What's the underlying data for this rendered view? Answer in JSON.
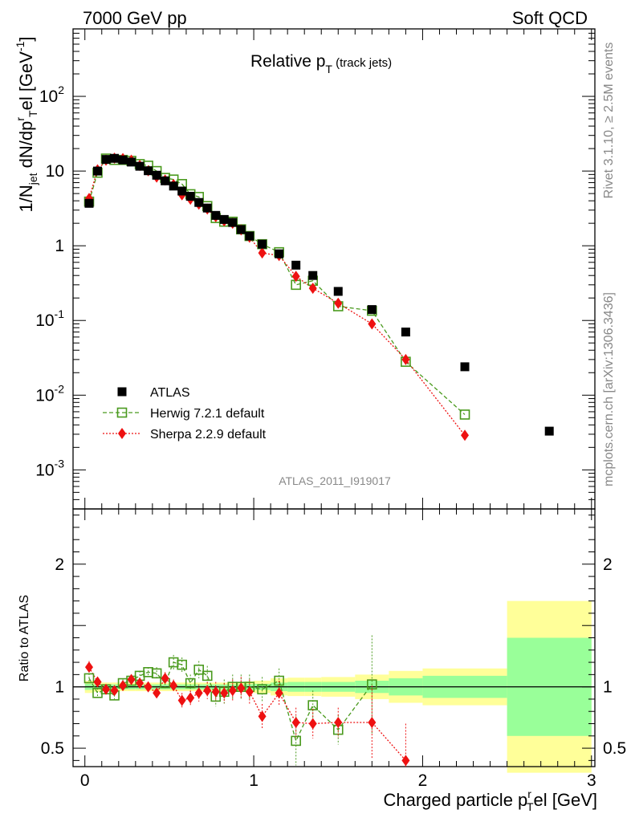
{
  "header": {
    "left": "7000 GeV pp",
    "right": "Soft QCD"
  },
  "side": {
    "rivet": "Rivet 3.1.10, ≥ 2.5M events",
    "mcplots": "mcplots.cern.ch [arXiv:1306.3436]"
  },
  "watermark": "ATLAS_2011_I919017",
  "colors": {
    "atlas": "#000000",
    "herwig": "#4a9a1e",
    "sherpa": "#ee1111",
    "band_inner": "#99ff99",
    "band_outer": "#ffff99"
  },
  "chart_data": [
    {
      "type": "scatter",
      "title": "Relative p_T (track jets)",
      "ylabel": "1/N_jet dN/dp_T^rel [GeV^-1]",
      "xlim": [
        -0.07,
        3.02
      ],
      "ylim": [
        0.0003,
        800
      ],
      "yscale": "log",
      "ytick_labels": [
        "10^-3",
        "10^-2",
        "10^-1",
        "1",
        "10",
        "10^2"
      ],
      "legend_position": "lower-left",
      "series": [
        {
          "name": "ATLAS",
          "x": [
            0.025,
            0.075,
            0.125,
            0.175,
            0.225,
            0.275,
            0.325,
            0.375,
            0.425,
            0.475,
            0.525,
            0.575,
            0.625,
            0.675,
            0.725,
            0.775,
            0.825,
            0.875,
            0.925,
            0.975,
            1.05,
            1.15,
            1.25,
            1.35,
            1.5,
            1.7,
            1.9,
            2.25,
            2.75
          ],
          "y": [
            3.7,
            10,
            14.3,
            14.8,
            14.1,
            13.2,
            11.6,
            10.1,
            8.8,
            7.4,
            6.3,
            5.4,
            4.6,
            3.8,
            3.2,
            2.55,
            2.25,
            2.05,
            1.65,
            1.35,
            1.05,
            0.78,
            0.55,
            0.4,
            0.245,
            0.14,
            0.07,
            0.024,
            0.0033
          ]
        },
        {
          "name": "Herwig 7.2.1 default",
          "x": [
            0.025,
            0.075,
            0.125,
            0.175,
            0.225,
            0.275,
            0.325,
            0.375,
            0.425,
            0.475,
            0.525,
            0.575,
            0.625,
            0.675,
            0.725,
            0.775,
            0.825,
            0.875,
            0.925,
            0.975,
            1.05,
            1.15,
            1.25,
            1.35,
            1.5,
            1.7,
            1.9,
            2.25
          ],
          "y": [
            3.9,
            9.5,
            14.7,
            14.1,
            14.1,
            13.7,
            12.4,
            11.8,
            10.0,
            8.1,
            7.7,
            6.7,
            4.9,
            4.5,
            3.4,
            2.35,
            2.1,
            2.1,
            1.66,
            1.35,
            1.05,
            0.82,
            0.3,
            0.34,
            0.155,
            0.135,
            0.028,
            0.0055
          ]
        },
        {
          "name": "Sherpa 2.2.9 default",
          "x": [
            0.025,
            0.075,
            0.125,
            0.175,
            0.225,
            0.275,
            0.325,
            0.375,
            0.425,
            0.475,
            0.525,
            0.575,
            0.625,
            0.675,
            0.725,
            0.775,
            0.825,
            0.875,
            0.925,
            0.975,
            1.05,
            1.15,
            1.25,
            1.35,
            1.5,
            1.7,
            1.9,
            2.25
          ],
          "y": [
            4.3,
            10.4,
            14.0,
            14.9,
            14.7,
            14.0,
            11.9,
            10.1,
            8.3,
            7.6,
            6.6,
            4.8,
            4.2,
            3.6,
            3.1,
            2.45,
            2.15,
            2.0,
            1.63,
            1.3,
            0.8,
            0.74,
            0.39,
            0.27,
            0.17,
            0.09,
            0.03,
            0.0029
          ]
        }
      ]
    },
    {
      "type": "scatter",
      "xlabel": "Charged particle p_T^rel [GeV]",
      "ylabel": "Ratio to ATLAS",
      "xlim": [
        -0.07,
        3.02
      ],
      "ylim": [
        0.35,
        2.45
      ],
      "xtick_labels": [
        "0",
        "1",
        "2",
        "3"
      ],
      "ytick_labels": [
        "0.5",
        "1",
        "2"
      ],
      "bands": {
        "edges": [
          0,
          0.05,
          0.1,
          0.15,
          0.2,
          0.25,
          0.3,
          0.35,
          0.4,
          0.45,
          0.5,
          0.55,
          0.6,
          0.65,
          0.7,
          0.75,
          0.8,
          0.85,
          0.9,
          0.95,
          1.0,
          1.1,
          1.2,
          1.3,
          1.4,
          1.6,
          1.8,
          2.0,
          2.5,
          3.0
        ],
        "inner": [
          0.025,
          0.02,
          0.02,
          0.02,
          0.02,
          0.02,
          0.02,
          0.02,
          0.02,
          0.02,
          0.02,
          0.02,
          0.02,
          0.02,
          0.02,
          0.02,
          0.02,
          0.02,
          0.02,
          0.022,
          0.025,
          0.035,
          0.04,
          0.04,
          0.04,
          0.05,
          0.07,
          0.09,
          0.4
        ],
        "outer": [
          0.05,
          0.04,
          0.035,
          0.035,
          0.035,
          0.035,
          0.035,
          0.035,
          0.035,
          0.035,
          0.035,
          0.035,
          0.035,
          0.035,
          0.035,
          0.035,
          0.035,
          0.035,
          0.04,
          0.045,
          0.05,
          0.07,
          0.075,
          0.075,
          0.08,
          0.1,
          0.13,
          0.15,
          0.7
        ]
      },
      "series": [
        {
          "name": "Herwig 7.2.1 default",
          "x": [
            0.025,
            0.075,
            0.125,
            0.175,
            0.225,
            0.275,
            0.325,
            0.375,
            0.425,
            0.475,
            0.525,
            0.575,
            0.625,
            0.675,
            0.725,
            0.775,
            0.825,
            0.875,
            0.925,
            0.975,
            1.05,
            1.15,
            1.25,
            1.35,
            1.5,
            1.7
          ],
          "y": [
            1.07,
            0.95,
            0.98,
            0.93,
            1.03,
            1.05,
            1.09,
            1.12,
            1.11,
            1.03,
            1.2,
            1.18,
            1.03,
            1.14,
            1.09,
            0.92,
            0.96,
            1.0,
            1.0,
            1.0,
            0.98,
            1.05,
            0.56,
            0.85,
            0.65,
            1.02
          ],
          "err": [
            0.04,
            0.04,
            0.03,
            0.03,
            0.03,
            0.03,
            0.04,
            0.04,
            0.05,
            0.05,
            0.06,
            0.06,
            0.07,
            0.07,
            0.08,
            0.08,
            0.1,
            0.1,
            0.1,
            0.1,
            0.1,
            0.1,
            0.2,
            0.12,
            0.12,
            0.4
          ]
        },
        {
          "name": "Sherpa 2.2.9 default",
          "x": [
            0.025,
            0.075,
            0.125,
            0.175,
            0.225,
            0.275,
            0.325,
            0.375,
            0.425,
            0.475,
            0.525,
            0.575,
            0.625,
            0.675,
            0.725,
            0.775,
            0.825,
            0.875,
            0.925,
            0.975,
            1.05,
            1.15,
            1.25,
            1.35,
            1.5,
            1.7,
            1.9
          ],
          "y": [
            1.16,
            1.04,
            0.98,
            0.97,
            1.01,
            1.06,
            1.03,
            1.0,
            0.95,
            1.07,
            1.01,
            0.89,
            0.91,
            0.95,
            0.97,
            0.96,
            0.95,
            0.97,
            0.99,
            0.96,
            0.76,
            0.95,
            0.71,
            0.7,
            0.71,
            0.71,
            0.4
          ],
          "err": [
            0.05,
            0.04,
            0.03,
            0.03,
            0.03,
            0.03,
            0.04,
            0.04,
            0.04,
            0.05,
            0.05,
            0.06,
            0.06,
            0.07,
            0.07,
            0.08,
            0.08,
            0.09,
            0.09,
            0.1,
            0.1,
            0.1,
            0.12,
            0.12,
            0.12,
            0.3,
            0.3
          ]
        }
      ]
    }
  ]
}
